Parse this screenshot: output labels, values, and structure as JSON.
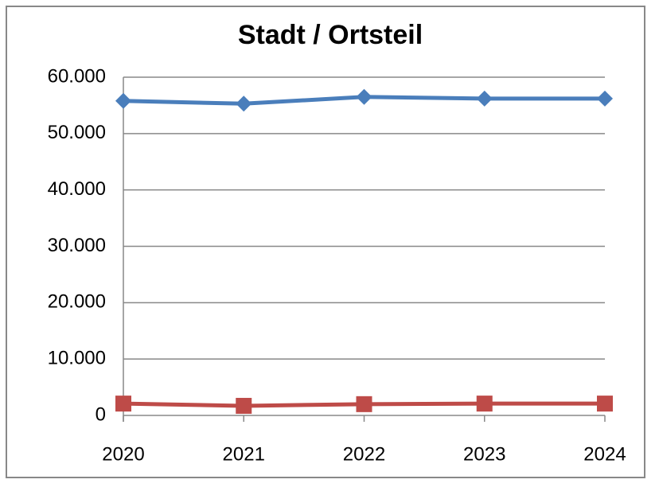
{
  "chart_data": {
    "type": "line",
    "title": "Stadt / Ortsteil",
    "categories": [
      "2020",
      "2021",
      "2022",
      "2023",
      "2024"
    ],
    "series": [
      {
        "color": "#4a7ebb",
        "values": [
          55800,
          55300,
          56500,
          56200,
          56200
        ]
      },
      {
        "color": "#be4b48",
        "values": [
          2100,
          1700,
          2000,
          2100,
          2100
        ]
      }
    ],
    "ylim": [
      0,
      60000
    ],
    "yticks": [
      0,
      {
        "value": 10000,
        "label": "10.000"
      },
      {
        "value": 20000,
        "label": "20.000"
      },
      {
        "value": 30000,
        "label": "30.000"
      },
      {
        "value": 40000,
        "label": "40.000"
      },
      {
        "value": 50000,
        "label": "50.000"
      },
      {
        "value": 60000,
        "label": "60.000"
      }
    ],
    "grid": true
  }
}
